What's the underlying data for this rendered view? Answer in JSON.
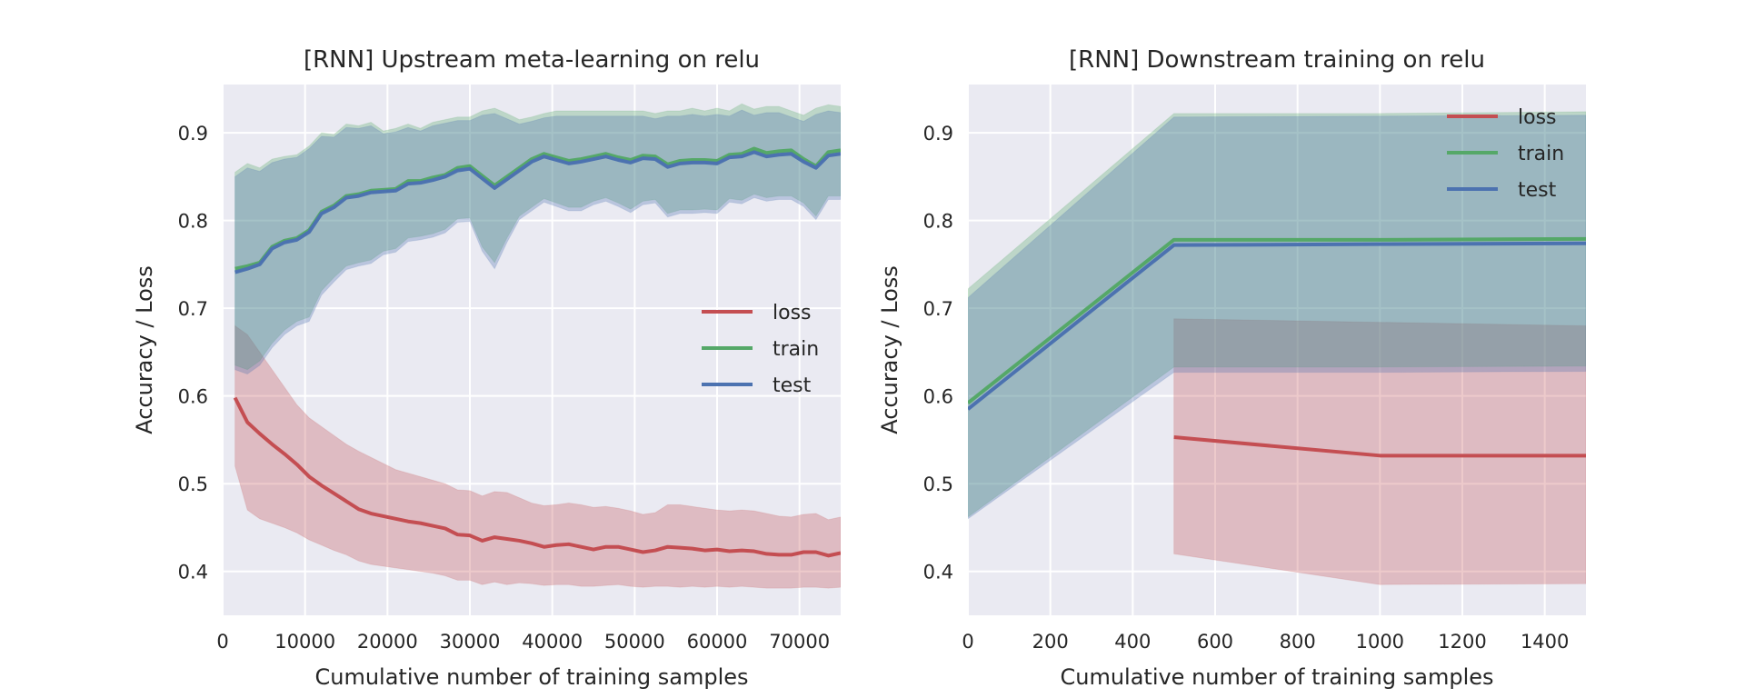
{
  "colors": {
    "loss": "#c44e52",
    "train": "#55a868",
    "test": "#4c72b0",
    "background": "#eaeaf2",
    "grid": "#ffffff",
    "text": "#262626"
  },
  "chart_data": [
    {
      "type": "line",
      "title": "[RNN] Upstream meta-learning on relu",
      "xlabel": "Cumulative number of training samples",
      "ylabel": "Accuracy / Loss",
      "xlim": [
        0,
        75000
      ],
      "ylim": [
        0.35,
        0.955
      ],
      "xticks": [
        0,
        10000,
        20000,
        30000,
        40000,
        50000,
        60000,
        70000
      ],
      "yticks": [
        0.4,
        0.5,
        0.6,
        0.7,
        0.8,
        0.9
      ],
      "grid": true,
      "legend_placement": "center-right",
      "x": [
        1500,
        3000,
        4500,
        6000,
        7500,
        9000,
        10500,
        12000,
        13500,
        15000,
        16500,
        18000,
        19500,
        21000,
        22500,
        24000,
        25500,
        27000,
        28500,
        30000,
        31500,
        33000,
        34500,
        36000,
        37500,
        39000,
        40500,
        42000,
        43500,
        45000,
        46500,
        48000,
        49500,
        51000,
        52500,
        54000,
        55500,
        57000,
        58500,
        60000,
        61500,
        63000,
        64500,
        66000,
        67500,
        69000,
        70500,
        72000,
        73500,
        75000
      ],
      "series": [
        {
          "name": "loss",
          "values": [
            0.598,
            0.57,
            0.557,
            0.545,
            0.534,
            0.522,
            0.508,
            0.498,
            0.489,
            0.48,
            0.471,
            0.466,
            0.463,
            0.46,
            0.457,
            0.455,
            0.452,
            0.449,
            0.442,
            0.441,
            0.435,
            0.439,
            0.437,
            0.435,
            0.432,
            0.428,
            0.43,
            0.431,
            0.428,
            0.425,
            0.428,
            0.428,
            0.425,
            0.422,
            0.424,
            0.428,
            0.427,
            0.426,
            0.424,
            0.425,
            0.423,
            0.424,
            0.423,
            0.42,
            0.419,
            0.419,
            0.422,
            0.422,
            0.418,
            0.421
          ],
          "upper": [
            0.68,
            0.67,
            0.65,
            0.63,
            0.61,
            0.59,
            0.575,
            0.565,
            0.555,
            0.545,
            0.537,
            0.53,
            0.523,
            0.516,
            0.512,
            0.508,
            0.504,
            0.5,
            0.493,
            0.492,
            0.486,
            0.491,
            0.49,
            0.484,
            0.478,
            0.475,
            0.476,
            0.478,
            0.476,
            0.473,
            0.474,
            0.472,
            0.469,
            0.465,
            0.467,
            0.476,
            0.476,
            0.474,
            0.472,
            0.47,
            0.469,
            0.47,
            0.469,
            0.466,
            0.463,
            0.462,
            0.465,
            0.466,
            0.459,
            0.462
          ],
          "lower": [
            0.52,
            0.47,
            0.46,
            0.455,
            0.45,
            0.444,
            0.436,
            0.43,
            0.424,
            0.419,
            0.412,
            0.408,
            0.406,
            0.404,
            0.402,
            0.4,
            0.398,
            0.395,
            0.39,
            0.39,
            0.385,
            0.388,
            0.385,
            0.387,
            0.386,
            0.384,
            0.385,
            0.385,
            0.383,
            0.383,
            0.384,
            0.385,
            0.383,
            0.382,
            0.383,
            0.383,
            0.382,
            0.383,
            0.382,
            0.383,
            0.382,
            0.383,
            0.382,
            0.381,
            0.381,
            0.381,
            0.382,
            0.382,
            0.381,
            0.382
          ]
        },
        {
          "name": "train",
          "values": [
            0.745,
            0.748,
            0.752,
            0.77,
            0.777,
            0.78,
            0.789,
            0.81,
            0.817,
            0.828,
            0.83,
            0.834,
            0.835,
            0.836,
            0.845,
            0.845,
            0.849,
            0.852,
            0.86,
            0.862,
            0.851,
            0.84,
            0.85,
            0.86,
            0.87,
            0.876,
            0.872,
            0.868,
            0.87,
            0.873,
            0.876,
            0.872,
            0.869,
            0.874,
            0.873,
            0.864,
            0.868,
            0.869,
            0.869,
            0.868,
            0.875,
            0.876,
            0.882,
            0.877,
            0.879,
            0.88,
            0.87,
            0.862,
            0.878,
            0.88
          ],
          "upper": [
            0.855,
            0.865,
            0.86,
            0.87,
            0.873,
            0.875,
            0.885,
            0.9,
            0.898,
            0.91,
            0.908,
            0.912,
            0.902,
            0.905,
            0.91,
            0.905,
            0.912,
            0.915,
            0.918,
            0.918,
            0.925,
            0.928,
            0.922,
            0.915,
            0.918,
            0.922,
            0.925,
            0.925,
            0.925,
            0.925,
            0.925,
            0.925,
            0.925,
            0.925,
            0.922,
            0.925,
            0.925,
            0.928,
            0.925,
            0.928,
            0.925,
            0.933,
            0.927,
            0.93,
            0.93,
            0.925,
            0.92,
            0.928,
            0.932,
            0.93
          ],
          "lower": [
            0.635,
            0.63,
            0.64,
            0.66,
            0.675,
            0.685,
            0.69,
            0.72,
            0.735,
            0.748,
            0.752,
            0.755,
            0.765,
            0.768,
            0.78,
            0.782,
            0.785,
            0.79,
            0.802,
            0.803,
            0.77,
            0.752,
            0.78,
            0.805,
            0.815,
            0.825,
            0.82,
            0.815,
            0.815,
            0.822,
            0.826,
            0.82,
            0.813,
            0.822,
            0.824,
            0.808,
            0.812,
            0.812,
            0.813,
            0.812,
            0.825,
            0.823,
            0.83,
            0.826,
            0.828,
            0.828,
            0.82,
            0.805,
            0.828,
            0.828
          ]
        },
        {
          "name": "test",
          "values": [
            0.741,
            0.745,
            0.75,
            0.768,
            0.775,
            0.778,
            0.787,
            0.808,
            0.815,
            0.826,
            0.828,
            0.832,
            0.833,
            0.834,
            0.842,
            0.843,
            0.846,
            0.85,
            0.857,
            0.859,
            0.848,
            0.837,
            0.847,
            0.857,
            0.867,
            0.873,
            0.869,
            0.865,
            0.867,
            0.87,
            0.873,
            0.869,
            0.866,
            0.871,
            0.87,
            0.861,
            0.865,
            0.866,
            0.866,
            0.865,
            0.872,
            0.873,
            0.878,
            0.873,
            0.875,
            0.876,
            0.867,
            0.86,
            0.874,
            0.876
          ],
          "upper": [
            0.85,
            0.86,
            0.856,
            0.866,
            0.87,
            0.872,
            0.882,
            0.896,
            0.895,
            0.906,
            0.905,
            0.908,
            0.899,
            0.901,
            0.906,
            0.902,
            0.908,
            0.911,
            0.914,
            0.914,
            0.92,
            0.922,
            0.916,
            0.91,
            0.913,
            0.917,
            0.919,
            0.919,
            0.919,
            0.919,
            0.919,
            0.919,
            0.919,
            0.919,
            0.916,
            0.919,
            0.919,
            0.921,
            0.919,
            0.921,
            0.919,
            0.926,
            0.92,
            0.923,
            0.923,
            0.918,
            0.913,
            0.921,
            0.925,
            0.923
          ],
          "lower": [
            0.63,
            0.625,
            0.635,
            0.655,
            0.67,
            0.68,
            0.685,
            0.715,
            0.73,
            0.744,
            0.748,
            0.751,
            0.761,
            0.764,
            0.776,
            0.778,
            0.781,
            0.786,
            0.798,
            0.799,
            0.765,
            0.745,
            0.775,
            0.801,
            0.811,
            0.821,
            0.816,
            0.811,
            0.811,
            0.818,
            0.822,
            0.816,
            0.809,
            0.818,
            0.82,
            0.804,
            0.808,
            0.808,
            0.809,
            0.808,
            0.821,
            0.819,
            0.826,
            0.822,
            0.824,
            0.824,
            0.816,
            0.801,
            0.824,
            0.824
          ]
        }
      ]
    },
    {
      "type": "line",
      "title": "[RNN] Downstream training on relu",
      "xlabel": "Cumulative number of training samples",
      "ylabel": "Accuracy / Loss",
      "xlim": [
        0,
        1500
      ],
      "ylim": [
        0.35,
        0.955
      ],
      "xticks": [
        0,
        200,
        400,
        600,
        800,
        1000,
        1200,
        1400
      ],
      "yticks": [
        0.4,
        0.5,
        0.6,
        0.7,
        0.8,
        0.9
      ],
      "grid": true,
      "legend_placement": "top-right",
      "series": [
        {
          "name": "loss",
          "x": [
            500,
            1000,
            1500
          ],
          "values": [
            0.553,
            0.532,
            0.532
          ],
          "upper": [
            0.688,
            0.684,
            0.68
          ],
          "lower": [
            0.42,
            0.385,
            0.386
          ]
        },
        {
          "name": "train",
          "x": [
            0,
            500,
            1000,
            1500
          ],
          "values": [
            0.592,
            0.778,
            0.778,
            0.779
          ],
          "upper": [
            0.722,
            0.922,
            0.922,
            0.924
          ],
          "lower": [
            0.462,
            0.633,
            0.633,
            0.634
          ]
        },
        {
          "name": "test",
          "x": [
            0,
            500,
            1000,
            1500
          ],
          "values": [
            0.585,
            0.772,
            0.773,
            0.774
          ],
          "upper": [
            0.712,
            0.918,
            0.919,
            0.92
          ],
          "lower": [
            0.46,
            0.627,
            0.627,
            0.628
          ]
        }
      ]
    }
  ]
}
